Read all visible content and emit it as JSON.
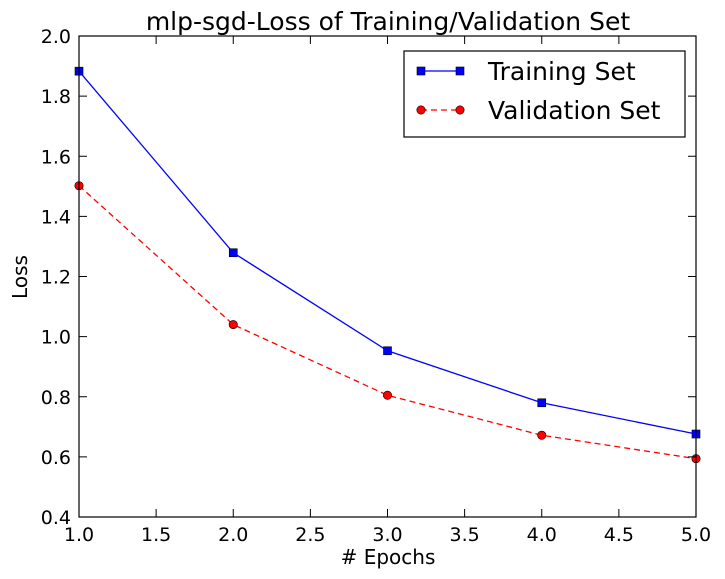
{
  "chart_data": {
    "type": "line",
    "title": "mlp-sgd-Loss of Training/Validation Set",
    "xlabel": "# Epochs",
    "ylabel": "Loss",
    "xlim": [
      1.0,
      5.0
    ],
    "ylim": [
      0.4,
      2.0
    ],
    "xticks": [
      "1.0",
      "1.5",
      "2.0",
      "2.5",
      "3.0",
      "3.5",
      "4.0",
      "4.5",
      "5.0"
    ],
    "yticks": [
      "0.4",
      "0.6",
      "0.8",
      "1.0",
      "1.2",
      "1.4",
      "1.6",
      "1.8",
      "2.0"
    ],
    "grid": false,
    "legend_position": "top-right",
    "series": [
      {
        "name": "Training Set",
        "x": [
          1,
          2,
          3,
          4,
          5
        ],
        "values": [
          1.883,
          1.279,
          0.953,
          0.78,
          0.676
        ],
        "color": "#0000ff",
        "linestyle": "solid",
        "marker": "square"
      },
      {
        "name": "Validation Set",
        "x": [
          1,
          2,
          3,
          4,
          5
        ],
        "values": [
          1.502,
          1.04,
          0.805,
          0.672,
          0.594
        ],
        "color": "#ff0000",
        "linestyle": "dashed",
        "marker": "circle"
      }
    ]
  }
}
